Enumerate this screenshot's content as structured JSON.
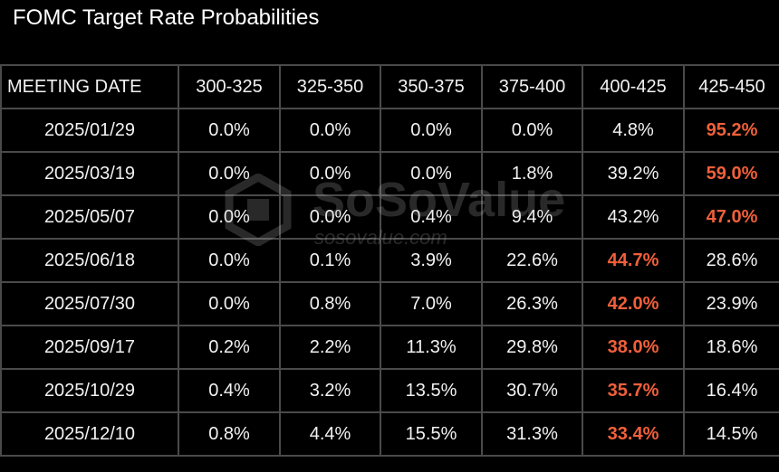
{
  "header": {
    "title": "FOMC Target Rate Probabilities"
  },
  "watermark": {
    "brand": "SoSoValue",
    "site": "sosovalue.com"
  },
  "highlight_color": "#f0603a",
  "table": {
    "columns": [
      "MEETING DATE",
      "300-325",
      "325-350",
      "350-375",
      "375-400",
      "400-425",
      "425-450"
    ],
    "rows": [
      [
        "2025/01/29",
        "0.0%",
        "0.0%",
        "0.0%",
        "0.0%",
        "4.8%",
        "95.2%"
      ],
      [
        "2025/03/19",
        "0.0%",
        "0.0%",
        "0.0%",
        "1.8%",
        "39.2%",
        "59.0%"
      ],
      [
        "2025/05/07",
        "0.0%",
        "0.0%",
        "0.4%",
        "9.4%",
        "43.2%",
        "47.0%"
      ],
      [
        "2025/06/18",
        "0.0%",
        "0.1%",
        "3.9%",
        "22.6%",
        "44.7%",
        "28.6%"
      ],
      [
        "2025/07/30",
        "0.0%",
        "0.8%",
        "7.0%",
        "26.3%",
        "42.0%",
        "23.9%"
      ],
      [
        "2025/09/17",
        "0.2%",
        "2.2%",
        "11.3%",
        "29.8%",
        "38.0%",
        "18.6%"
      ],
      [
        "2025/10/29",
        "0.4%",
        "3.2%",
        "13.5%",
        "30.7%",
        "35.7%",
        "16.4%"
      ],
      [
        "2025/12/10",
        "0.8%",
        "4.4%",
        "15.5%",
        "31.3%",
        "33.4%",
        "14.5%"
      ]
    ]
  }
}
